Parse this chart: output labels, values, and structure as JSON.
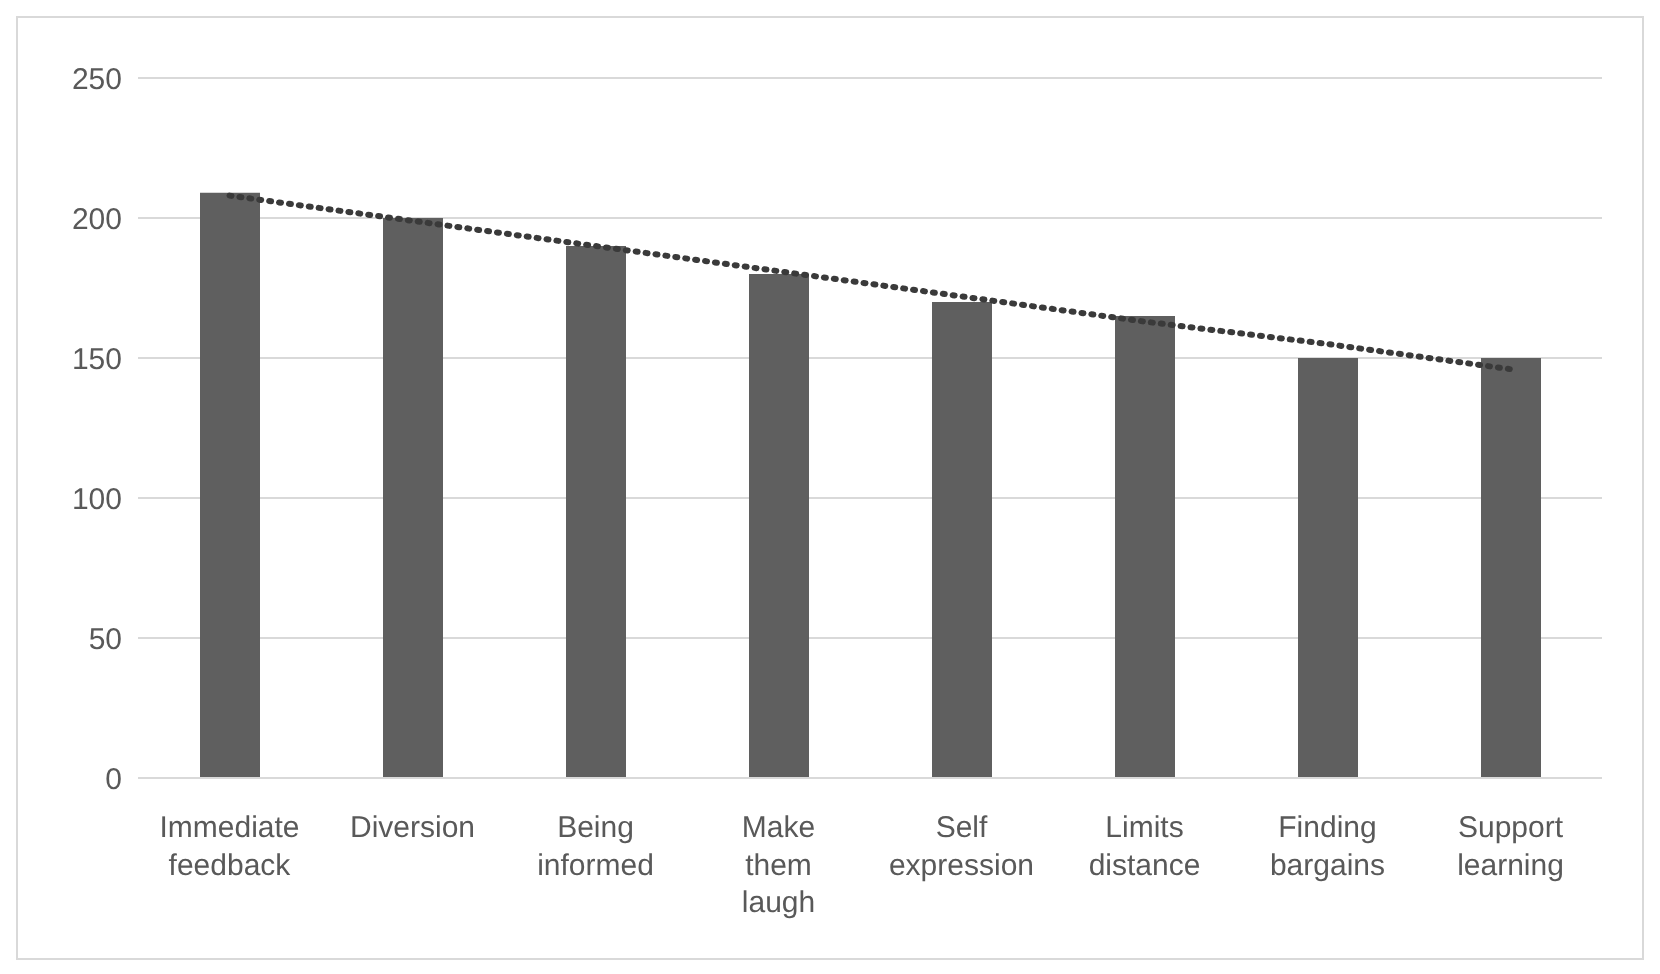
{
  "chart_data": {
    "type": "bar",
    "categories": [
      "Immediate feedback",
      "Diversion",
      "Being informed",
      "Make them laugh",
      "Self expression",
      "Limits distance",
      "Finding bargains",
      "Support learning"
    ],
    "series": [
      {
        "color": "#5f5f5f",
        "values": [
          209,
          200,
          190,
          180,
          170,
          165,
          150,
          150
        ]
      },
      {
        "type": "line",
        "color": "#3a3a3a",
        "line_style": "dotted",
        "marker": "none",
        "values": [
          208,
          199,
          190,
          181,
          172,
          163,
          155,
          146
        ]
      }
    ],
    "ylim": [
      0,
      250
    ],
    "yticks": [
      0,
      50,
      100,
      150,
      200,
      250
    ],
    "grid": "y"
  }
}
